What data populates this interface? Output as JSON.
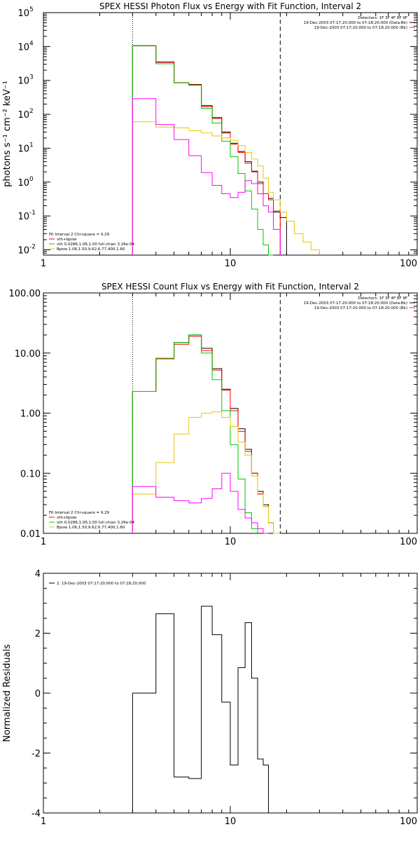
{
  "colors": {
    "data": "#000000",
    "total": "#ff0000",
    "vth": "#00c800",
    "bpow": "#e6c800",
    "bk": "#ff00ff"
  },
  "chart_data": [
    {
      "type": "line",
      "title": "SPEX HESSI Photon Flux vs Energy with Fit Function, Interval 2",
      "xlabel": "",
      "ylabel": "photons s⁻¹ cm⁻² keV⁻¹",
      "xscale": "log",
      "yscale": "log",
      "xlim": [
        1,
        100
      ],
      "ylim": [
        0.007,
        100000
      ],
      "xticks": [
        [
          1,
          "1"
        ],
        [
          10,
          "10"
        ],
        [
          100,
          "100"
        ]
      ],
      "yticks": [
        [
          0.01,
          "10",
          "-2"
        ],
        [
          0.1,
          "10",
          "-1"
        ],
        [
          1,
          "10",
          "0"
        ],
        [
          10,
          "10",
          "1"
        ],
        [
          100,
          "10",
          "2"
        ],
        [
          1000,
          "10",
          "3"
        ],
        [
          10000,
          "10",
          "4"
        ],
        [
          100000,
          "10",
          "5"
        ]
      ],
      "vlines": [
        {
          "x": 3.0,
          "style": "dotted"
        },
        {
          "x": 18.5,
          "style": "dashed"
        }
      ],
      "legend_right": [
        "Detectors: 1F 3F 4F 8F 9F",
        "19-Dec-2003 07:17:20.000 to 07:18:20.000 (Data-Bk)",
        "19-Dec-2003 07:17:20.000 to 07:18:20.000 (Bk)"
      ],
      "legend_left": [
        "Fit Interval 2   Chi-square = 9.29",
        "vth+bpow",
        "vth 0.0286,1.06,1.00  full chian 3.26e-04",
        "Bpow 1.06,1.50,9.62,6.77,400,1.60"
      ],
      "edges": [
        3.0,
        4.0,
        5.0,
        6.0,
        7.0,
        8.0,
        9.0,
        10.0,
        11.0,
        12.0,
        13.0,
        14.0,
        15.0,
        16.0,
        17.0,
        18.5,
        20.0,
        22.0,
        24.5,
        27.0,
        30.0
      ],
      "series": [
        {
          "key": "data",
          "values": [
            10500,
            3500,
            850,
            760,
            180,
            80,
            30,
            14,
            8,
            4,
            2.1,
            1.0,
            0.45,
            0.33,
            0.13,
            0.09,
            null,
            null,
            null,
            null
          ]
        },
        {
          "key": "total",
          "values": [
            10500,
            3400,
            860,
            740,
            170,
            75,
            28,
            13,
            7.5,
            3.6,
            2.0,
            0.9,
            0.45,
            0.3,
            0.14,
            null,
            null,
            null,
            null,
            null
          ]
        },
        {
          "key": "vth",
          "values": [
            10700,
            3100,
            850,
            720,
            150,
            55,
            16,
            5.6,
            1.8,
            0.55,
            0.16,
            0.04,
            0.014,
            0.007,
            null,
            null,
            null,
            null,
            null,
            null
          ]
        },
        {
          "key": "bpow",
          "values": [
            60,
            42,
            40,
            33,
            28,
            23,
            20,
            17,
            12,
            7.5,
            4.8,
            3.0,
            1.3,
            0.5,
            0.3,
            0.13,
            0.07,
            0.03,
            0.017,
            0.01
          ]
        },
        {
          "key": "bk",
          "values": [
            290,
            50,
            18,
            6,
            1.9,
            0.8,
            0.45,
            0.35,
            0.5,
            1.1,
            0.9,
            0.45,
            0.2,
            0.13,
            0.04,
            null,
            null,
            null,
            null,
            null
          ]
        }
      ]
    },
    {
      "type": "line",
      "title": "SPEX HESSI Count Flux vs Energy with Fit Function, Interval 2",
      "xlabel": "",
      "ylabel": "",
      "xscale": "log",
      "yscale": "log",
      "xlim": [
        1,
        100
      ],
      "ylim": [
        0.01,
        100
      ],
      "xticks": [
        [
          1,
          "1"
        ],
        [
          10,
          "10"
        ],
        [
          100,
          "100"
        ]
      ],
      "yticks": [
        [
          0.01,
          "0.01"
        ],
        [
          0.1,
          "0.10"
        ],
        [
          1,
          "1.00"
        ],
        [
          10,
          "10.00"
        ],
        [
          100,
          "100.00"
        ]
      ],
      "vlines": [
        {
          "x": 3.0,
          "style": "dotted"
        },
        {
          "x": 18.5,
          "style": "dashed"
        }
      ],
      "legend_right": [
        "Detectors: 1F 3F 4F 8F 9F",
        "19-Dec-2003 07:17:20.000 to 07:18:20.000 (Data-Bk)",
        "19-Dec-2003 07:17:20.000 to 07:18:20.000 (Bk)"
      ],
      "legend_left": [
        "Fit Interval 2   Chi-square = 9.29",
        "vth+bpow",
        "vth 0.0286,1.06,1.00  full chian 3.26e-04",
        "Bpow 1.06,1.50,9.62,6.77,400,1.60"
      ],
      "edges": [
        3.0,
        4.0,
        5.0,
        6.0,
        7.0,
        8.0,
        9.0,
        10.0,
        11.0,
        12.0,
        13.0,
        14.0,
        15.0,
        16.0,
        17.0,
        18.5,
        20.0
      ],
      "series": [
        {
          "key": "data",
          "values": [
            2.3,
            8.0,
            15,
            20,
            12,
            5.5,
            2.5,
            1.2,
            0.55,
            0.25,
            0.1,
            0.05,
            0.03,
            0.015,
            null,
            null
          ]
        },
        {
          "key": "total",
          "values": [
            2.3,
            8.0,
            14,
            19,
            11,
            5.2,
            2.4,
            1.1,
            0.5,
            0.23,
            0.1,
            0.045,
            0.028,
            0.015,
            null,
            null
          ]
        },
        {
          "key": "vth",
          "values": [
            2.3,
            8.2,
            15,
            20,
            10,
            3.6,
            1.1,
            0.3,
            0.08,
            0.022,
            0.012,
            null,
            null,
            null,
            null,
            null
          ]
        },
        {
          "key": "bpow",
          "values": [
            0.045,
            0.15,
            0.45,
            0.85,
            1.0,
            1.05,
            0.85,
            0.6,
            0.33,
            0.2,
            0.09,
            0.046,
            0.028,
            0.015,
            0.01,
            null
          ]
        },
        {
          "key": "bk",
          "values": [
            0.06,
            0.04,
            0.035,
            0.032,
            0.038,
            0.055,
            0.1,
            0.05,
            0.025,
            0.018,
            0.015,
            0.012,
            0.01,
            null,
            null,
            null
          ]
        }
      ]
    },
    {
      "type": "line",
      "title": "",
      "xlabel": "",
      "ylabel": "Normalized  Residuals",
      "xscale": "log",
      "yscale": "linear",
      "xlim": [
        1,
        100
      ],
      "ylim": [
        -4,
        4
      ],
      "xticks": [
        [
          1,
          "1"
        ],
        [
          10,
          "10"
        ],
        [
          100,
          "100"
        ]
      ],
      "yticks": [
        [
          -4,
          "-4"
        ],
        [
          -2,
          "-2"
        ],
        [
          0,
          "0"
        ],
        [
          2,
          "2"
        ],
        [
          4,
          "4"
        ]
      ],
      "legend_left": [
        "2. 19-Dec-2003 07:17:20.000 to 07:18:20.000"
      ],
      "edges": [
        3.0,
        4.0,
        5.0,
        6.0,
        7.0,
        8.0,
        9.0,
        10.0,
        11.0,
        12.0,
        13.0,
        14.0,
        15.0,
        16.0,
        17.0,
        18.5
      ],
      "series": [
        {
          "key": "data",
          "values": [
            0,
            2.65,
            -2.8,
            -2.85,
            2.9,
            1.95,
            -0.3,
            -2.4,
            0.85,
            2.35,
            0.5,
            -2.2,
            -2.4,
            null,
            null
          ]
        }
      ],
      "drop_to_floor": true
    }
  ]
}
